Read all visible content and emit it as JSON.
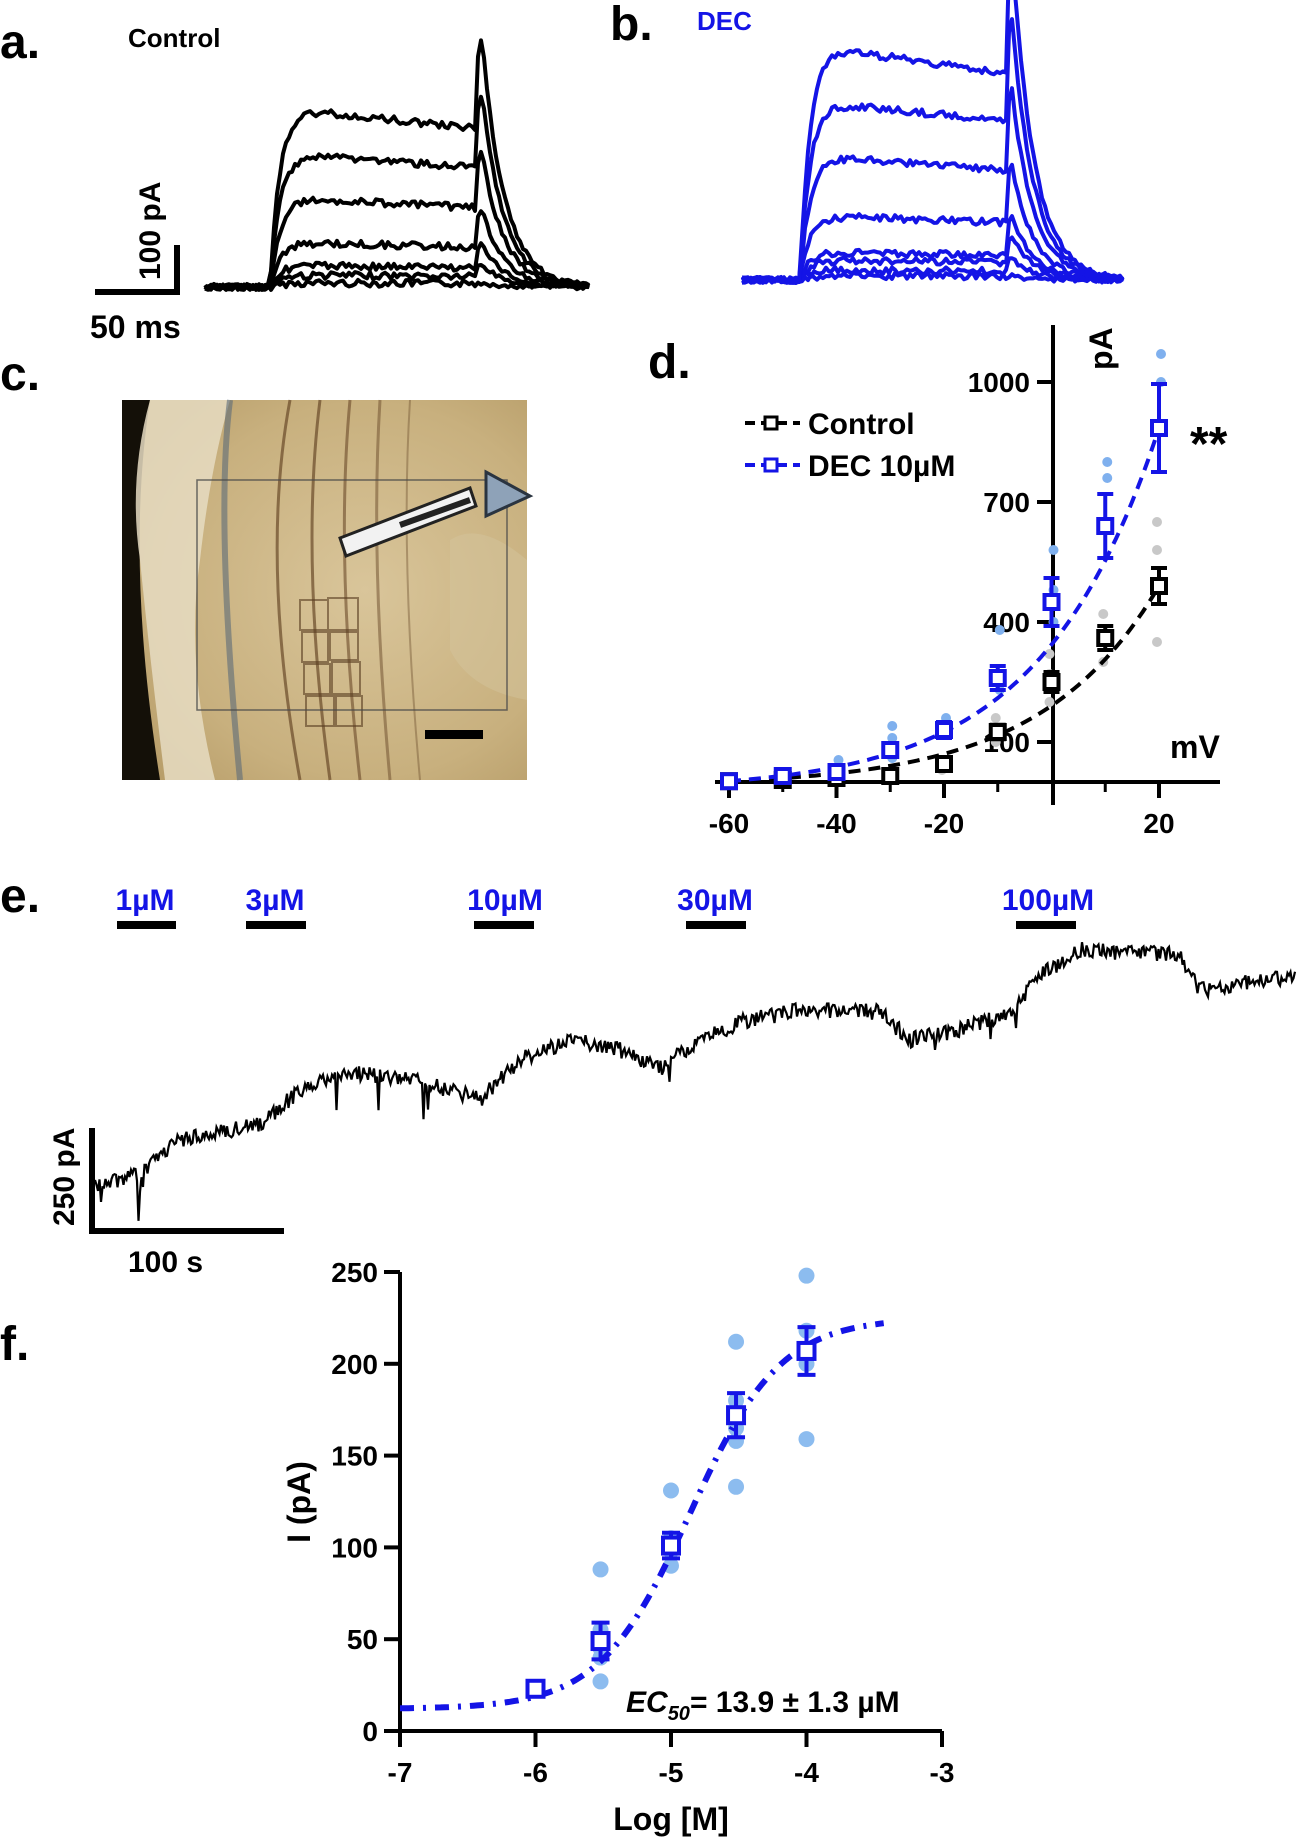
{
  "panels": {
    "a": {
      "letter": "a.",
      "title": "Control",
      "scale_y": "100 pA",
      "scale_x": "50 ms",
      "color": "#000000"
    },
    "b": {
      "letter": "b.",
      "title": "DEC",
      "color": "#1414e6"
    },
    "c": {
      "letter": "c."
    },
    "d": {
      "letter": "d."
    },
    "e": {
      "letter": "e.",
      "doses": [
        "1µM",
        "3µM",
        "10µM",
        "30µM",
        "100µM"
      ],
      "scale_y": "250 pA",
      "scale_x": "100 s"
    },
    "f": {
      "letter": "f.",
      "ec50_label": "EC",
      "ec50_sub": "50",
      "ec50_value": "= 13.9 ± 1.3 µM"
    }
  },
  "chart_data": [
    {
      "panel": "d",
      "type": "scatter",
      "xlabel": "mV",
      "ylabel": "pA",
      "xlim": [
        -62,
        28
      ],
      "ylim": [
        0,
        1100
      ],
      "xticks": [
        "-60",
        "-40",
        "-20",
        "20"
      ],
      "yticks": [
        "100",
        "400",
        "700",
        "1000"
      ],
      "annotation": "**",
      "legend_position": "top-left",
      "series": [
        {
          "name": "Control",
          "color": "#000000",
          "fit": "dashed",
          "x": [
            -60,
            -50,
            -40,
            -30,
            -20,
            -10,
            0,
            10,
            20
          ],
          "y": [
            2,
            5,
            10,
            15,
            45,
            125,
            250,
            360,
            490
          ],
          "err": [
            3,
            3,
            4,
            6,
            12,
            18,
            25,
            30,
            45
          ],
          "points": [
            [
              -60,
              8
            ],
            [
              -50,
              10
            ],
            [
              -40,
              12
            ],
            [
              -30,
              20
            ],
            [
              -20,
              30
            ],
            [
              -20,
              55
            ],
            [
              -10,
              100
            ],
            [
              -10,
              160
            ],
            [
              0,
              200
            ],
            [
              0,
              270
            ],
            [
              0,
              320
            ],
            [
              10,
              300
            ],
            [
              10,
              420
            ],
            [
              20,
              350
            ],
            [
              20,
              580
            ],
            [
              20,
              650
            ]
          ]
        },
        {
          "name": "DEC 10µM",
          "color": "#1414e6",
          "fit": "dashed",
          "x": [
            -60,
            -50,
            -40,
            -30,
            -20,
            -10,
            0,
            10,
            20
          ],
          "y": [
            2,
            15,
            25,
            80,
            130,
            260,
            450,
            640,
            885
          ],
          "err": [
            3,
            5,
            8,
            15,
            20,
            30,
            60,
            80,
            110
          ],
          "points": [
            [
              -60,
              10
            ],
            [
              -50,
              20
            ],
            [
              -40,
              35
            ],
            [
              -40,
              55
            ],
            [
              -30,
              110
            ],
            [
              -30,
              140
            ],
            [
              -30,
              60
            ],
            [
              -20,
              160
            ],
            [
              -20,
              140
            ],
            [
              -10,
              380
            ],
            [
              -10,
              230
            ],
            [
              0,
              580
            ],
            [
              0,
              480
            ],
            [
              0,
              400
            ],
            [
              10,
              800
            ],
            [
              10,
              760
            ],
            [
              20,
              1070
            ],
            [
              20,
              1000
            ]
          ]
        }
      ]
    },
    {
      "panel": "f",
      "type": "scatter",
      "xlabel": "Log [M]",
      "ylabel": "I (pA)",
      "xlim": [
        -7,
        -3
      ],
      "ylim": [
        0,
        250
      ],
      "xticks": [
        "-7",
        "-6",
        "-5",
        "-4",
        "-3"
      ],
      "yticks": [
        "0",
        "50",
        "100",
        "150",
        "200",
        "250"
      ],
      "series": [
        {
          "color": "#1414e6",
          "fit": "dotted",
          "x": [
            -6,
            -5.52,
            -5,
            -4.52,
            -4
          ],
          "y": [
            23,
            49,
            101,
            172,
            207
          ],
          "err": [
            3,
            10,
            7,
            12,
            13
          ],
          "points": [
            [
              -6,
              23
            ],
            [
              -5.52,
              88
            ],
            [
              -5.52,
              55
            ],
            [
              -5.52,
              45
            ],
            [
              -5.52,
              40
            ],
            [
              -5.52,
              27
            ],
            [
              -5,
              131
            ],
            [
              -5,
              105
            ],
            [
              -5,
              98
            ],
            [
              -5,
              90
            ],
            [
              -4.52,
              212
            ],
            [
              -4.52,
              180
            ],
            [
              -4.52,
              165
            ],
            [
              -4.52,
              158
            ],
            [
              -4.52,
              133
            ],
            [
              -4,
              248
            ],
            [
              -4,
              218
            ],
            [
              -4,
              200
            ],
            [
              -4,
              159
            ]
          ]
        }
      ]
    }
  ]
}
